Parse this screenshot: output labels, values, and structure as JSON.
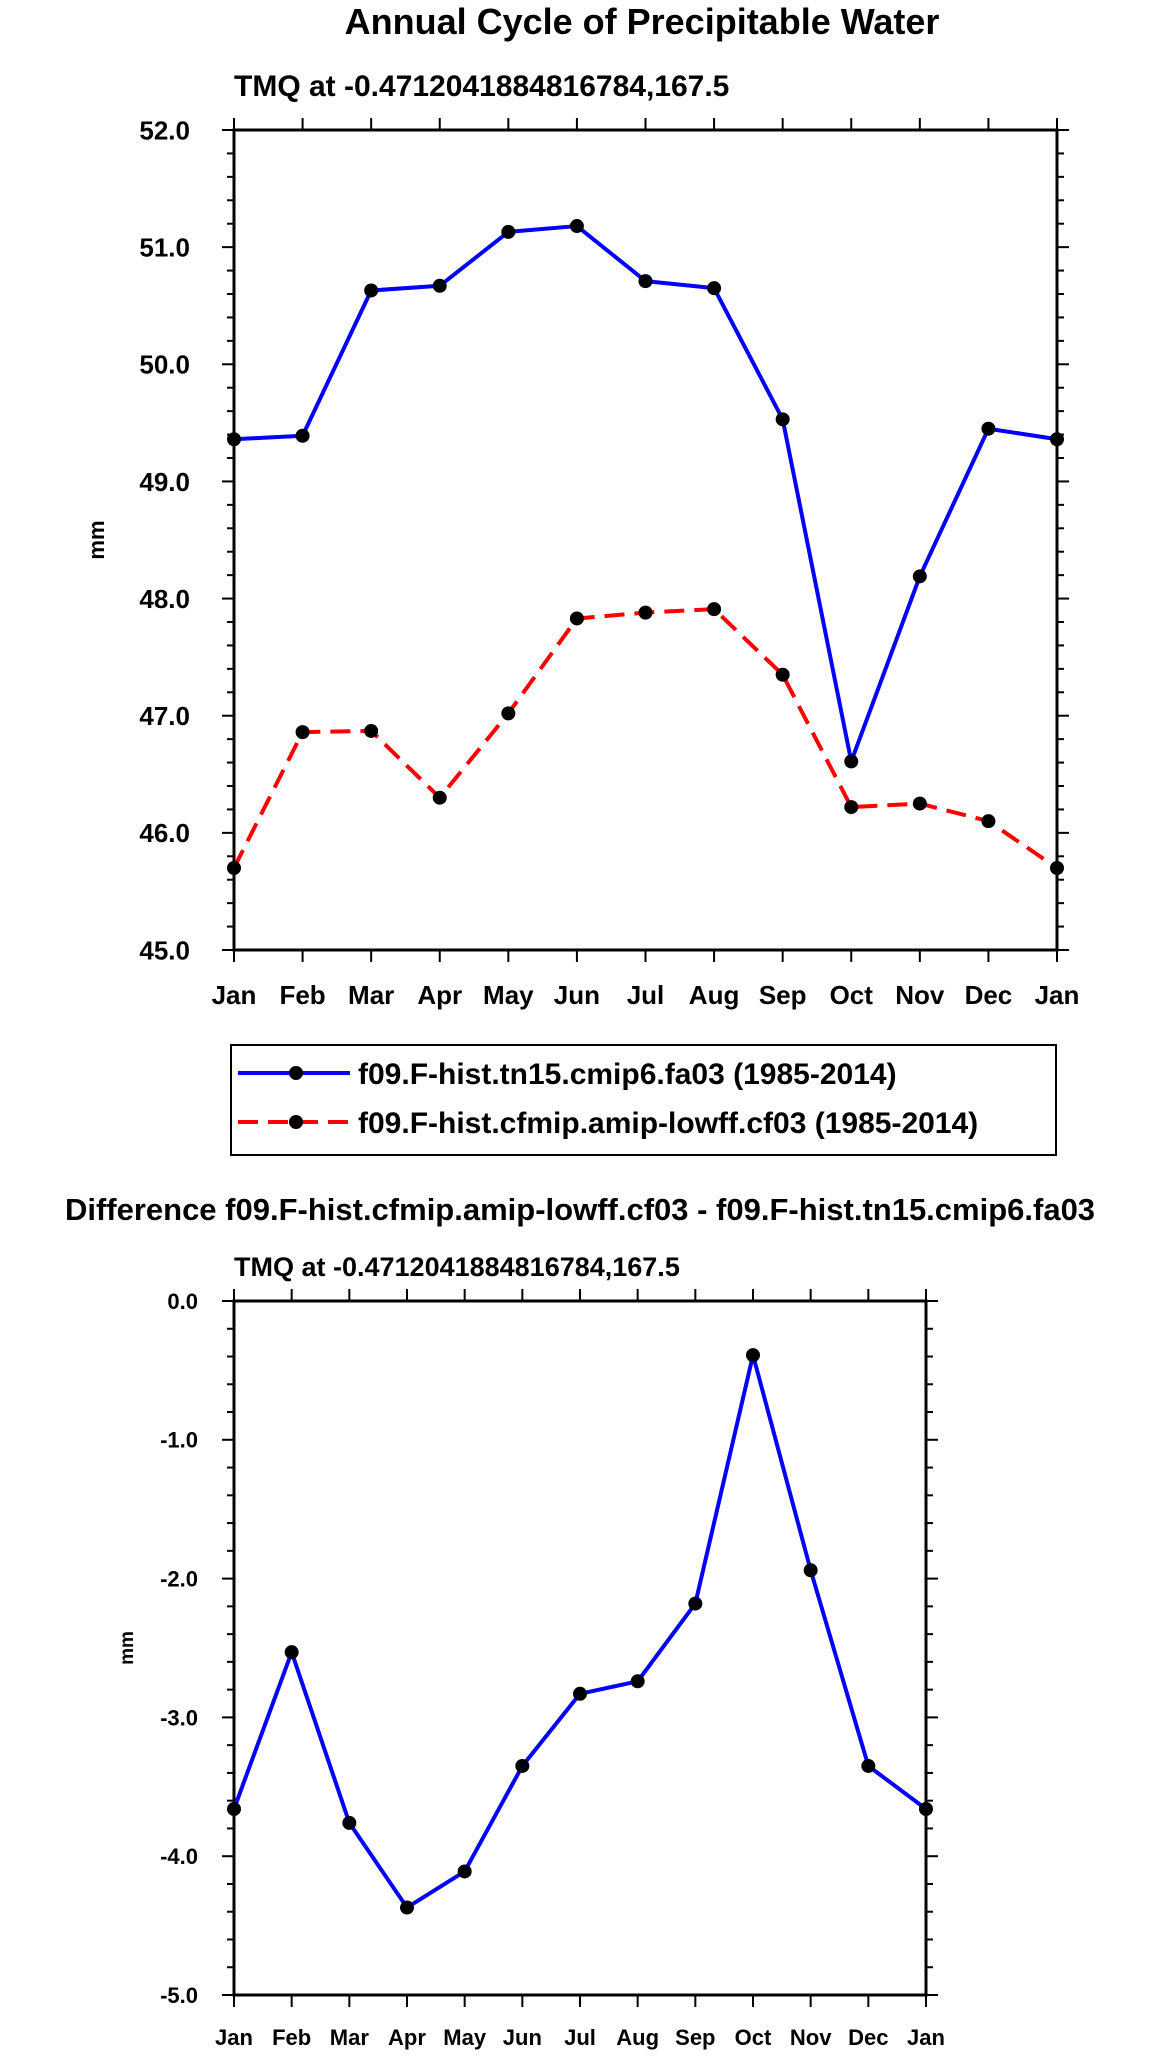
{
  "chart_data": [
    {
      "type": "line",
      "title": "Annual Cycle of Precipitable Water",
      "subtitle": "TMQ at -0.4712041884816784,167.5",
      "ylabel": "mm",
      "xlabel": "",
      "ylim": [
        45.0,
        52.0
      ],
      "yticks": [
        "45.0",
        "46.0",
        "47.0",
        "48.0",
        "49.0",
        "50.0",
        "51.0",
        "52.0"
      ],
      "categories": [
        "Jan",
        "Feb",
        "Mar",
        "Apr",
        "May",
        "Jun",
        "Jul",
        "Aug",
        "Sep",
        "Oct",
        "Nov",
        "Dec",
        "Jan"
      ],
      "legend_position": "below",
      "series": [
        {
          "name": "f09.F-hist.tn15.cmip6.fa03 (1985-2014)",
          "color": "#0000ff",
          "dash": "solid",
          "values": [
            49.36,
            49.39,
            50.63,
            50.67,
            51.13,
            51.18,
            50.71,
            50.65,
            49.53,
            46.61,
            48.19,
            49.45,
            49.36
          ]
        },
        {
          "name": "f09.F-hist.cfmip.amip-lowff.cf03 (1985-2014)",
          "color": "#ff0000",
          "dash": "dashed",
          "values": [
            45.7,
            46.86,
            46.87,
            46.3,
            47.02,
            47.83,
            47.88,
            47.91,
            47.35,
            46.22,
            46.25,
            46.1,
            45.7
          ]
        }
      ]
    },
    {
      "type": "line",
      "title": "Difference f09.F-hist.cfmip.amip-lowff.cf03 - f09.F-hist.tn15.cmip6.fa03",
      "subtitle": "TMQ at -0.4712041884816784,167.5",
      "ylabel": "mm",
      "xlabel": "",
      "ylim": [
        -5.0,
        0.0
      ],
      "yticks": [
        "-5.0",
        "-4.0",
        "-3.0",
        "-2.0",
        "-1.0",
        "0.0"
      ],
      "categories": [
        "Jan",
        "Feb",
        "Mar",
        "Apr",
        "May",
        "Jun",
        "Jul",
        "Aug",
        "Sep",
        "Oct",
        "Nov",
        "Dec",
        "Jan"
      ],
      "series": [
        {
          "name": "difference",
          "color": "#0000ff",
          "dash": "solid",
          "values": [
            -3.66,
            -2.53,
            -3.76,
            -4.37,
            -4.11,
            -3.35,
            -2.83,
            -2.74,
            -2.18,
            -0.39,
            -1.94,
            -3.35,
            -3.66
          ]
        }
      ]
    }
  ]
}
